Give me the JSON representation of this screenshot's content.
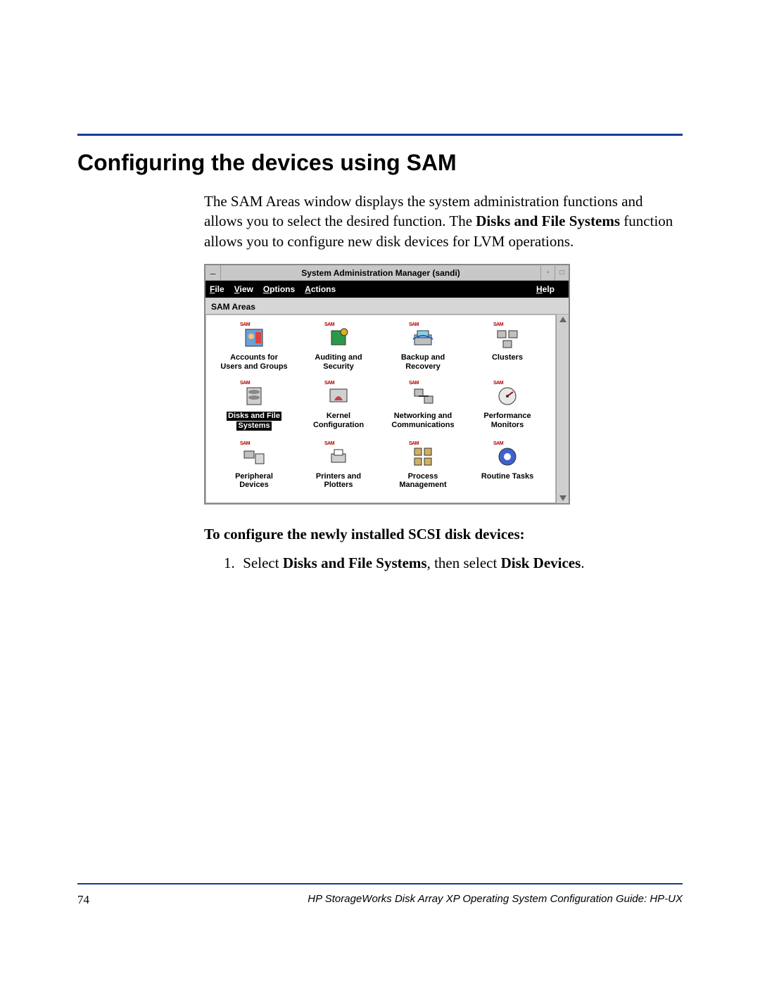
{
  "heading": "Configuring the devices using SAM",
  "intro_before_bold": "The SAM Areas window displays the system administration functions and allows you to select the desired function. The ",
  "intro_bold": "Disks and File Systems",
  "intro_after_bold": " function allows you to configure new disk devices for LVM operations.",
  "sam": {
    "title": "System Administration Manager (sandi)",
    "menus": {
      "file": "File",
      "view": "View",
      "options": "Options",
      "actions": "Actions",
      "help": "Help"
    },
    "areas_label": "SAM Areas",
    "icons": [
      {
        "line1": "Accounts for",
        "line2": "Users and Groups",
        "kind": "accounts",
        "selected": false
      },
      {
        "line1": "Auditing and",
        "line2": "Security",
        "kind": "auditing",
        "selected": false
      },
      {
        "line1": "Backup and",
        "line2": "Recovery",
        "kind": "backup",
        "selected": false
      },
      {
        "line1": "Clusters",
        "line2": "",
        "kind": "clusters",
        "selected": false
      },
      {
        "line1": "Disks and File",
        "line2": "Systems",
        "kind": "disks",
        "selected": true
      },
      {
        "line1": "Kernel",
        "line2": "Configuration",
        "kind": "kernel",
        "selected": false
      },
      {
        "line1": "Networking and",
        "line2": "Communications",
        "kind": "network",
        "selected": false
      },
      {
        "line1": "Performance",
        "line2": "Monitors",
        "kind": "perf",
        "selected": false
      },
      {
        "line1": "Peripheral",
        "line2": "Devices",
        "kind": "periph",
        "selected": false
      },
      {
        "line1": "Printers and",
        "line2": "Plotters",
        "kind": "printers",
        "selected": false
      },
      {
        "line1": "Process",
        "line2": "Management",
        "kind": "process",
        "selected": false
      },
      {
        "line1": "Routine Tasks",
        "line2": "",
        "kind": "routine",
        "selected": false
      }
    ]
  },
  "subhead": "To configure the newly installed SCSI disk devices:",
  "step1_a": "Select ",
  "step1_b": "Disks and File Systems",
  "step1_c": ", then select ",
  "step1_d": "Disk Devices",
  "step1_e": ".",
  "page_number": "74",
  "doc_title": "HP StorageWorks Disk Array XP Operating System Configuration Guide: HP-UX",
  "colors": {
    "rule": "#1a3a9a"
  }
}
